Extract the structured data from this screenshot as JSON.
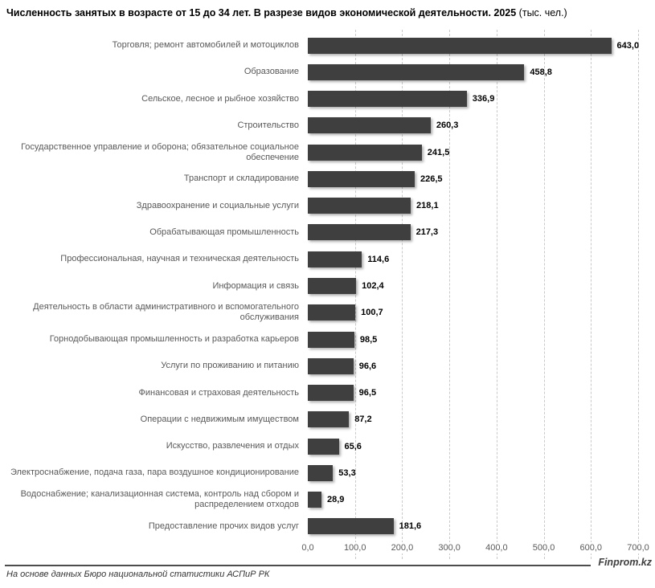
{
  "title": {
    "main": "Численность занятых в возрасте от 15 до 34 лет. В разрезе видов экономической деятельности. 2025",
    "suffix": " (тыс. чел.)"
  },
  "chart_data": {
    "type": "bar",
    "orientation": "horizontal",
    "title": "Численность занятых в возрасте от 15 до 34 лет. В разрезе видов экономической деятельности. 2025 (тыс. чел.)",
    "unit": "тыс. чел.",
    "categories": [
      "Торговля; ремонт автомобилей и мотоциклов",
      "Образование",
      "Сельское, лесное и рыбное хозяйство",
      "Строительство",
      "Государственное управление и оборона; обязательное социальное\nобеспечение",
      "Транспорт и складирование",
      "Здравоохранение и социальные услуги",
      "Обрабатывающая промышленность",
      "Профессиональная, научная и техническая деятельность",
      "Информация и связь",
      "Деятельность в области административного и вспомогательного\nобслуживания",
      "Горнодобывающая промышленность и разработка карьеров",
      "Услуги по проживанию и питанию",
      "Финансовая и страховая деятельность",
      "Операции с недвижимым имуществом",
      "Искусство, развлечения и отдых",
      "Электроснабжение, подача газа, пара воздушное кондиционирование",
      "Водоснабжение; канализационная система, контроль над сбором и\nраспределением отходов",
      "Предоставление прочих видов услуг"
    ],
    "values": [
      643.0,
      458.8,
      336.9,
      260.3,
      241.5,
      226.5,
      218.1,
      217.3,
      114.6,
      102.4,
      100.7,
      98.5,
      96.6,
      96.5,
      87.2,
      65.6,
      53.3,
      28.9,
      181.6
    ],
    "value_labels": [
      "643,0",
      "458,8",
      "336,9",
      "260,3",
      "241,5",
      "226,5",
      "218,1",
      "217,3",
      "114,6",
      "102,4",
      "100,7",
      "98,5",
      "96,6",
      "96,5",
      "87,2",
      "65,6",
      "53,3",
      "28,9",
      "181,6"
    ],
    "xlim": [
      0,
      700
    ],
    "x_ticks": [
      "0,0",
      "100,0",
      "200,0",
      "300,0",
      "400,0",
      "500,0",
      "600,0",
      "700,0"
    ],
    "grid": "vertical-dashed",
    "legend": "none",
    "bar_color": "#3f3f3f",
    "gridline_color": "#c9c9c9",
    "category_label_color": "#595959",
    "value_label_color": "#000000"
  },
  "footer": {
    "source": "На основе данных Бюро национальной статистики АСПиР РК",
    "brand": "Finprom.kz"
  }
}
